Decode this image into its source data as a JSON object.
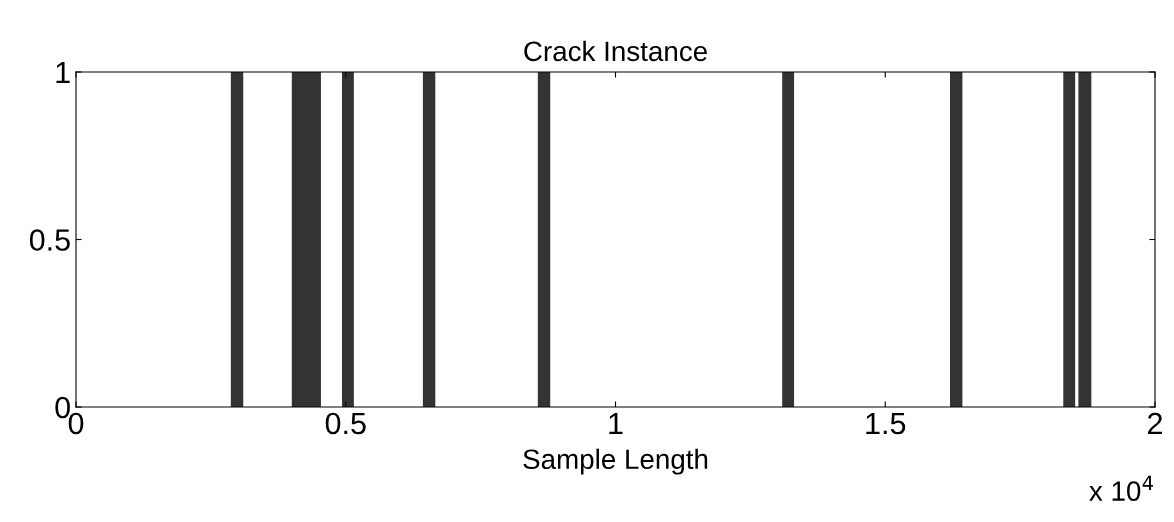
{
  "chart_data": {
    "type": "area",
    "title": "Crack Instance",
    "xlabel": "Sample Length",
    "x": [
      0,
      0.287,
      0.287,
      0.31,
      0.31,
      0.4,
      0.4,
      0.454,
      0.454,
      0.493,
      0.493,
      0.515,
      0.515,
      0.643,
      0.643,
      0.666,
      0.666,
      0.856,
      0.856,
      0.879,
      0.879,
      1.309,
      1.309,
      1.331,
      1.331,
      1.62,
      1.62,
      1.643,
      1.643,
      1.83,
      1.83,
      1.852,
      1.852,
      1.858,
      1.858,
      1.882,
      1.882,
      2
    ],
    "series": [
      {
        "color": "#333333",
        "values": [
          0,
          0,
          1,
          1,
          0,
          0,
          1,
          1,
          0,
          0,
          1,
          1,
          0,
          0,
          1,
          1,
          0,
          0,
          1,
          1,
          0,
          0,
          1,
          1,
          0,
          0,
          1,
          1,
          0,
          0,
          1,
          1,
          0,
          0,
          1,
          1,
          0,
          0
        ]
      }
    ],
    "xlim": [
      0,
      2
    ],
    "xticks": [
      0,
      0.5,
      1,
      1.5,
      2
    ],
    "ylim": [
      0,
      1
    ],
    "yticks": [
      0,
      0.5,
      1
    ],
    "annotations": [
      "x 10$^{4}$"
    ],
    "grid": false,
    "legend": false
  }
}
